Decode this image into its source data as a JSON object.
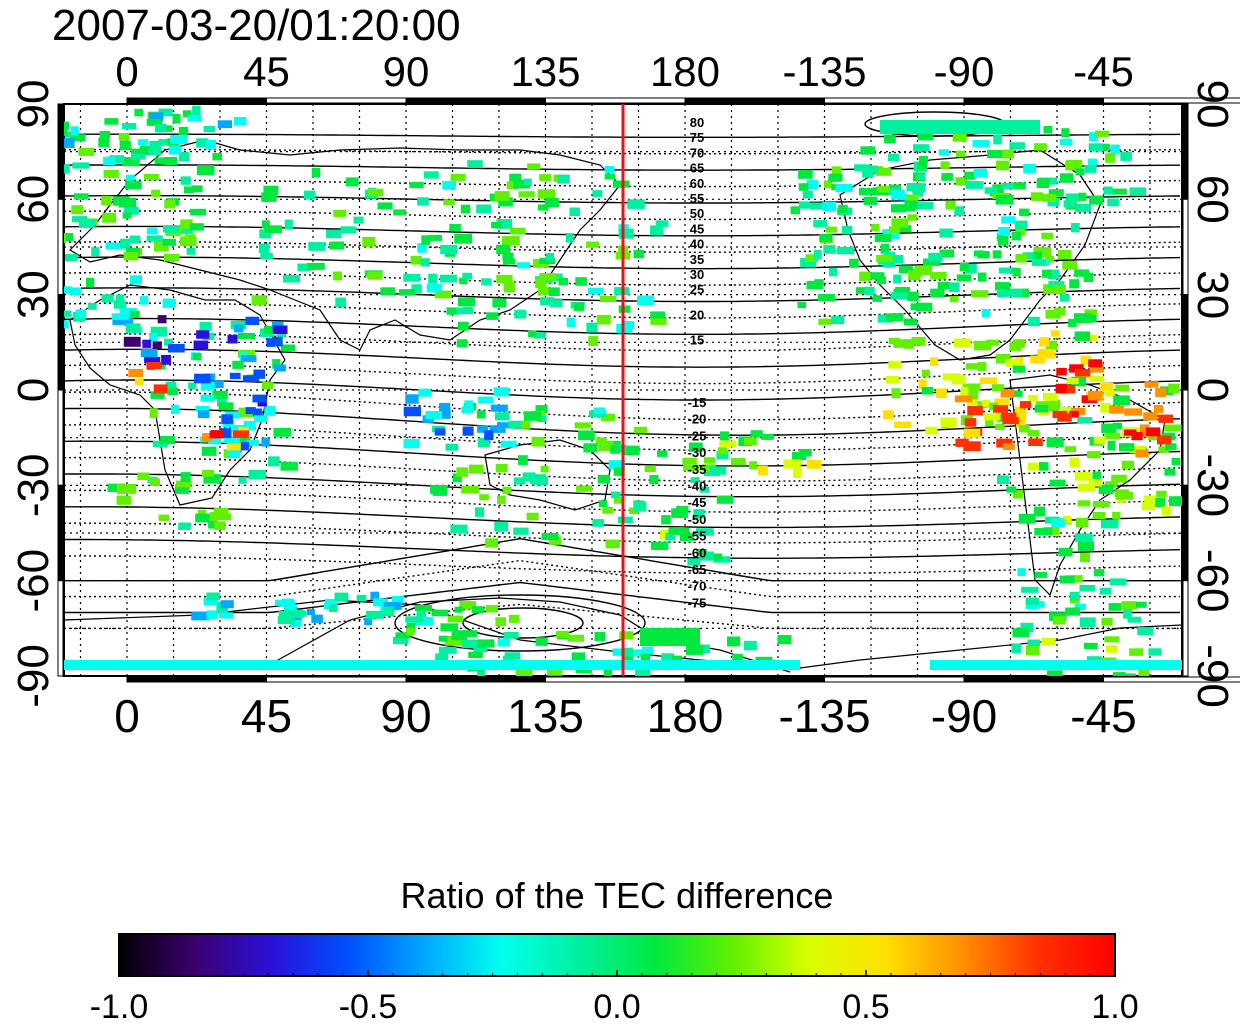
{
  "title": "2007-03-20/01:20:00",
  "map": {
    "top_lon_labels": [
      "0",
      "45",
      "90",
      "135",
      "180",
      "-135",
      "-90",
      "-45"
    ],
    "bottom_lon_labels": [
      "0",
      "45",
      "90",
      "135",
      "180",
      "-135",
      "-90",
      "-45"
    ],
    "left_lat_labels": [
      "90",
      "60",
      "30",
      "0",
      "-30",
      "-60",
      "-90"
    ],
    "right_lat_labels": [
      "90",
      "60",
      "30",
      "0",
      "-30",
      "-60",
      "-90"
    ],
    "contour_labels_north": [
      "80",
      "75",
      "70",
      "65",
      "60",
      "55",
      "50",
      "45",
      "40",
      "35",
      "30",
      "25",
      "20",
      "15"
    ],
    "contour_labels_south": [
      "-15",
      "-20",
      "-25",
      "-30",
      "-35",
      "-40",
      "-45",
      "-50",
      "-55",
      "-60",
      "-65",
      "-70",
      "-75"
    ],
    "marker_line_longitude": 160,
    "marker_line_color": "#e8141a"
  },
  "colorbar": {
    "title": "Ratio of the TEC difference",
    "tick_labels": [
      "-1.0",
      "-0.5",
      "0.0",
      "0.5",
      "1.0"
    ],
    "min": -1.0,
    "max": 1.0,
    "colors": [
      "#000000",
      "#3c0070",
      "#2a10d8",
      "#0050ff",
      "#00a8ff",
      "#00ffee",
      "#00f0a0",
      "#00e840",
      "#60f000",
      "#d8ff00",
      "#ffe000",
      "#ff9000",
      "#ff3000",
      "#ff0000"
    ]
  }
}
